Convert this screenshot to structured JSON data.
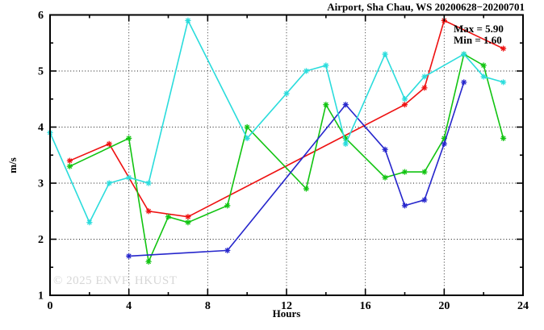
{
  "watermark": "© 2025 ENVF, HKUST",
  "chart_data": {
    "type": "line",
    "title": "Airport, Sha Chau, WS 20200628−20200701",
    "xlabel": "Hours",
    "ylabel": "m/s",
    "xlim": [
      0,
      24
    ],
    "ylim": [
      1,
      6
    ],
    "x_major_ticks": [
      0,
      4,
      8,
      12,
      16,
      20,
      24
    ],
    "x_minor_step": 2,
    "y_major_ticks": [
      1,
      2,
      3,
      4,
      5,
      6
    ],
    "y_minor_step": 0.5,
    "grid": "dotted lines at major ticks, box border, mirrored inward ticks",
    "legend": "none",
    "marker": "asterisk",
    "annotations": [
      "Max = 5.90",
      "Min = 1.60"
    ],
    "series": [
      {
        "name": "series-red",
        "color": "#ee1111",
        "points": [
          [
            1,
            3.4
          ],
          [
            3,
            3.7
          ],
          [
            5,
            2.5
          ],
          [
            7,
            2.4
          ],
          [
            18,
            4.4
          ],
          [
            19,
            4.7
          ],
          [
            20,
            5.9
          ],
          [
            23,
            5.4
          ]
        ]
      },
      {
        "name": "series-green",
        "color": "#11c411",
        "points": [
          [
            1,
            3.3
          ],
          [
            4,
            3.8
          ],
          [
            5,
            1.6
          ],
          [
            6,
            2.4
          ],
          [
            7,
            2.3
          ],
          [
            9,
            2.6
          ],
          [
            10,
            4.0
          ],
          [
            13,
            2.9
          ],
          [
            14,
            4.4
          ],
          [
            15,
            3.8
          ],
          [
            17,
            3.1
          ],
          [
            18,
            3.2
          ],
          [
            19,
            3.2
          ],
          [
            20,
            3.8
          ],
          [
            21,
            5.3
          ],
          [
            22,
            5.1
          ],
          [
            23,
            3.8
          ]
        ]
      },
      {
        "name": "series-blue",
        "color": "#2626cc",
        "points": [
          [
            4,
            1.7
          ],
          [
            9,
            1.8
          ],
          [
            15,
            4.4
          ],
          [
            17,
            3.6
          ],
          [
            18,
            2.6
          ],
          [
            19,
            2.7
          ],
          [
            20,
            3.7
          ],
          [
            21,
            4.8
          ]
        ]
      },
      {
        "name": "series-cyan",
        "color": "#2adcdc",
        "points": [
          [
            0,
            3.9
          ],
          [
            2,
            2.3
          ],
          [
            3,
            3.0
          ],
          [
            4,
            3.1
          ],
          [
            5,
            3.0
          ],
          [
            7,
            5.9
          ],
          [
            10,
            3.8
          ],
          [
            12,
            4.6
          ],
          [
            13,
            5.0
          ],
          [
            14,
            5.1
          ],
          [
            15,
            3.7
          ],
          [
            17,
            5.3
          ],
          [
            18,
            4.5
          ],
          [
            19,
            4.9
          ],
          [
            21,
            5.3
          ],
          [
            22,
            4.9
          ],
          [
            23,
            4.8
          ]
        ]
      }
    ]
  }
}
